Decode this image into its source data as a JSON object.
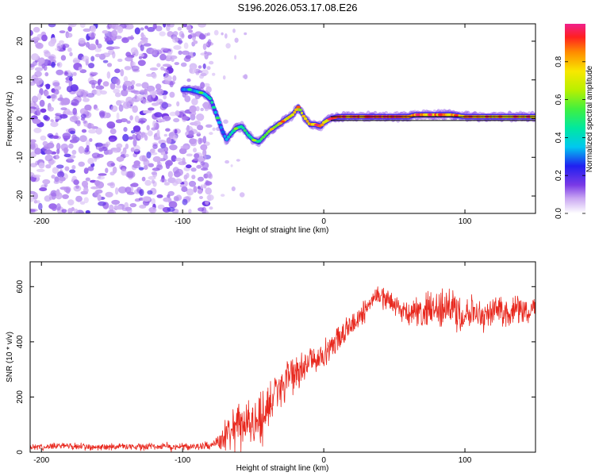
{
  "title": "S196.2026.053.17.08.E26",
  "chart_data": [
    {
      "type": "heatmap",
      "name": "spectrogram",
      "xlabel": "Height of straight line (km)",
      "ylabel": "Frequency (Hz)",
      "xlim": [
        -208,
        150
      ],
      "ylim": [
        -24.5,
        24.5
      ],
      "xticks": [
        -200,
        -100,
        0,
        100
      ],
      "yticks": [
        -20,
        -10,
        0,
        10,
        20
      ],
      "noise_region_x": [
        -208,
        -80
      ],
      "colorbar": {
        "label": "Normalized spectral amplitude",
        "range": [
          0,
          1
        ],
        "ticks": [
          0.0,
          0.2,
          0.4,
          0.6,
          0.8
        ]
      },
      "ridge": {
        "x": [
          -100,
          -95,
          -90,
          -85,
          -80,
          -76,
          -72,
          -69,
          -66,
          -62,
          -58,
          -54,
          -50,
          -46,
          -42,
          -38,
          -34,
          -30,
          -26,
          -22,
          -18,
          -14,
          -10,
          -6,
          -2,
          0,
          5,
          10,
          20,
          40,
          60,
          65,
          70,
          80,
          90,
          100,
          110,
          120,
          130,
          140,
          150
        ],
        "y": [
          7.5,
          7.5,
          7,
          6.5,
          5,
          1,
          -3,
          -5.5,
          -4,
          -2.5,
          -2,
          -4,
          -5.5,
          -6,
          -4.5,
          -3,
          -2,
          -1,
          0,
          1,
          3,
          0.5,
          -1.5,
          -1.5,
          -2,
          -1,
          0,
          0.5,
          0.5,
          0.5,
          0.5,
          1,
          1,
          1,
          1,
          0.5,
          0.5,
          0.5,
          0.5,
          0.5,
          0.5
        ],
        "amp": [
          0.3,
          0.35,
          0.35,
          0.4,
          0.45,
          0.4,
          0.3,
          0.35,
          0.45,
          0.5,
          0.5,
          0.45,
          0.45,
          0.5,
          0.55,
          0.65,
          0.7,
          0.75,
          0.75,
          0.75,
          0.7,
          0.75,
          0.8,
          0.85,
          0.85,
          0.8,
          0.85,
          0.9,
          0.9,
          0.9,
          0.9,
          0.85,
          0.85,
          0.85,
          0.8,
          0.8,
          0.8,
          0.8,
          0.8,
          0.8,
          0.8
        ]
      },
      "reference_line_y": [
        0.5,
        -0.5
      ]
    },
    {
      "type": "line",
      "name": "snr",
      "xlabel": "Height of straight line (km)",
      "ylabel": "SNR (10 * v/v)",
      "xlim": [
        -208,
        150
      ],
      "ylim": [
        0,
        690
      ],
      "xticks": [
        -200,
        -100,
        0,
        100
      ],
      "yticks": [
        0,
        200,
        400,
        600
      ],
      "color": "#e8281e",
      "series": [
        {
          "name": "SNR",
          "x": [
            -208,
            -180,
            -150,
            -120,
            -100,
            -90,
            -80,
            -75,
            -70,
            -65,
            -60,
            -55,
            -50,
            -45,
            -40,
            -35,
            -30,
            -25,
            -20,
            -15,
            -10,
            -5,
            0,
            5,
            10,
            15,
            20,
            25,
            30,
            35,
            40,
            45,
            50,
            55,
            60,
            65,
            70,
            75,
            80,
            85,
            90,
            95,
            100,
            105,
            110,
            115,
            120,
            125,
            130,
            135,
            140,
            145,
            150
          ],
          "mean": [
            20,
            20,
            20,
            20,
            20,
            22,
            25,
            35,
            60,
            85,
            110,
            100,
            105,
            120,
            160,
            200,
            230,
            260,
            280,
            300,
            330,
            340,
            360,
            380,
            400,
            430,
            460,
            490,
            520,
            560,
            560,
            550,
            540,
            510,
            500,
            510,
            500,
            530,
            510,
            520,
            530,
            500,
            510,
            520,
            510,
            500,
            510,
            520,
            500,
            510,
            520,
            510,
            520
          ],
          "amp": [
            15,
            15,
            15,
            15,
            15,
            15,
            18,
            30,
            80,
            100,
            110,
            100,
            100,
            110,
            100,
            100,
            90,
            80,
            80,
            70,
            70,
            60,
            60,
            60,
            60,
            60,
            50,
            50,
            50,
            50,
            50,
            50,
            50,
            50,
            60,
            60,
            70,
            70,
            80,
            80,
            90,
            100,
            80,
            70,
            60,
            60,
            60,
            60,
            60,
            60,
            60,
            60,
            50
          ]
        }
      ]
    }
  ]
}
